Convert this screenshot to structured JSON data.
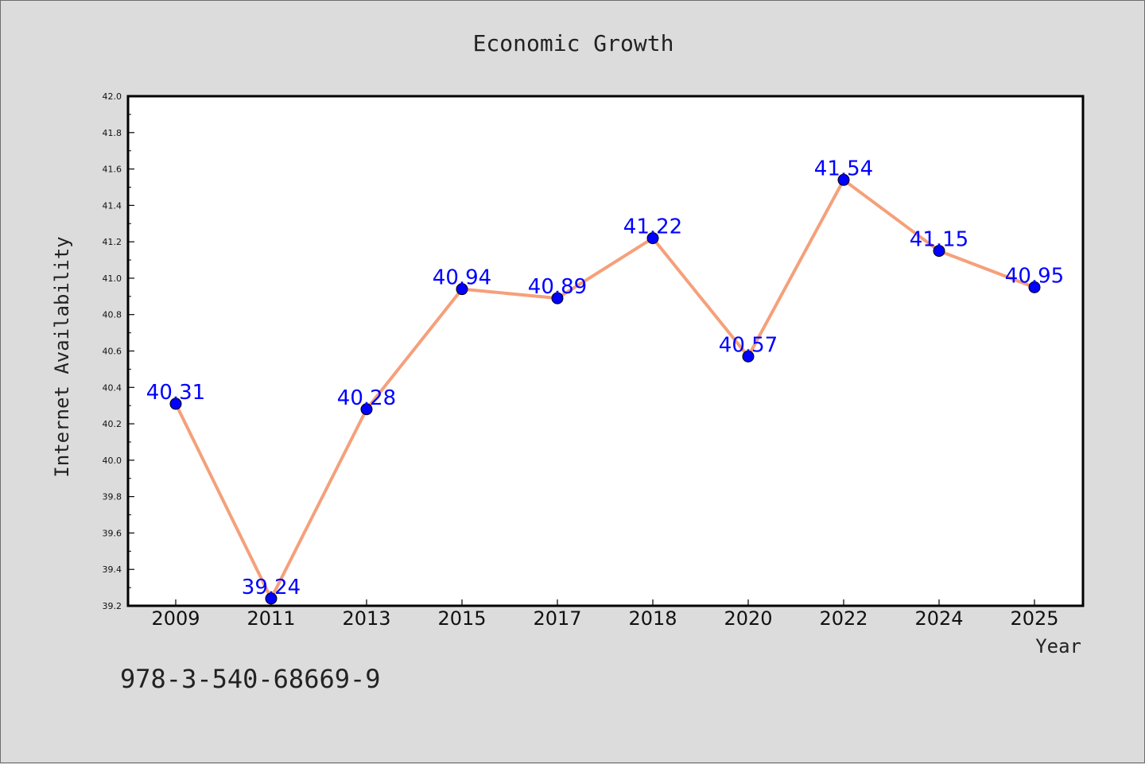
{
  "chart_data": {
    "type": "line",
    "title": "Economic Growth",
    "xlabel": "Year",
    "ylabel": "Internet Availability",
    "categories": [
      "2009",
      "2011",
      "2013",
      "2015",
      "2017",
      "2018",
      "2020",
      "2022",
      "2024",
      "2025"
    ],
    "series": [
      {
        "values": [
          40.31,
          39.24,
          40.28,
          40.94,
          40.89,
          41.22,
          40.57,
          41.54,
          41.15,
          40.95
        ],
        "labels": [
          "40.31",
          "39.24",
          "40.28",
          "40.94",
          "40.89",
          "41.22",
          "40.57",
          "41.54",
          "41.15",
          "40.95"
        ],
        "line_color": "#f5a07a",
        "marker_color": "#0000ff",
        "label_color": "#0000ff"
      }
    ],
    "ylim": [
      39.2,
      42.0
    ],
    "yticks": [
      "39.2",
      "39.4",
      "39.6",
      "39.8",
      "40.0",
      "40.2",
      "40.4",
      "40.6",
      "40.8",
      "41.0",
      "41.2",
      "41.4",
      "41.6",
      "41.8",
      "42.0"
    ],
    "grid": false,
    "legend": "none"
  },
  "annotation": {
    "text": "978-3-540-68669-9"
  },
  "colors": {
    "background": "#dcdcdc",
    "plot_background": "#ffffff",
    "text": "#222222"
  }
}
